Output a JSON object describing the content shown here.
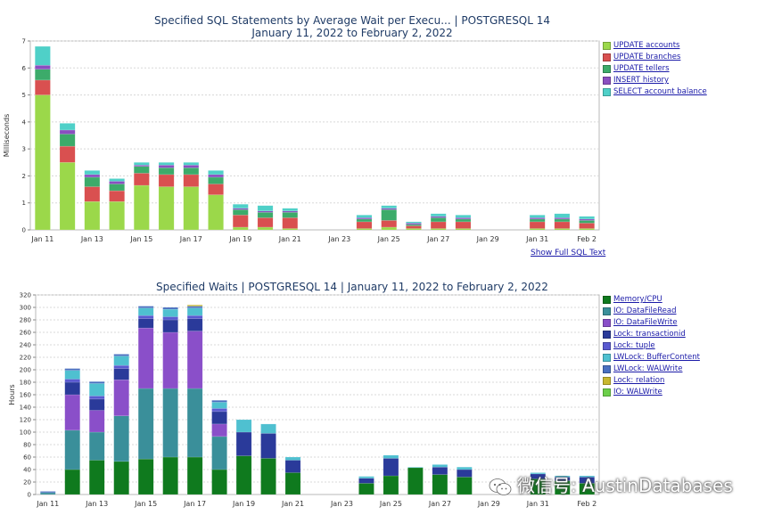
{
  "chart_data": [
    {
      "type": "bar",
      "stacked": true,
      "title": "Specified SQL Statements by Average Wait per Execu... | POSTGRESQL 14",
      "subtitle": "January 11, 2022 to February 2, 2022",
      "ylabel": "Milliseconds",
      "ylim": [
        0,
        7
      ],
      "yticks": [
        0,
        1,
        2,
        3,
        4,
        5,
        6,
        7
      ],
      "grid": true,
      "legend_position": "right",
      "x_tick_labels": [
        "Jan 11",
        "Jan 13",
        "Jan 15",
        "Jan 17",
        "Jan 19",
        "Jan 21",
        "Jan 23",
        "Jan 25",
        "Jan 27",
        "Jan 29",
        "Jan 31",
        "Feb 2"
      ],
      "categories": [
        "Jan 11",
        "Jan 12",
        "Jan 13",
        "Jan 14",
        "Jan 15",
        "Jan 16",
        "Jan 17",
        "Jan 18",
        "Jan 19",
        "Jan 20",
        "Jan 21",
        "Jan 22",
        "Jan 23",
        "Jan 24",
        "Jan 25",
        "Jan 26",
        "Jan 27",
        "Jan 28",
        "Jan 29",
        "Jan 30",
        "Jan 31",
        "Feb 1",
        "Feb 2"
      ],
      "series": [
        {
          "name": "UPDATE accounts",
          "color": "#9bd84a",
          "values": [
            5.0,
            2.5,
            1.05,
            1.05,
            1.65,
            1.6,
            1.6,
            1.3,
            0.1,
            0.1,
            0.05,
            0,
            0,
            0.05,
            0.1,
            0.05,
            0.05,
            0.05,
            0,
            0,
            0.05,
            0.05,
            0.05
          ]
        },
        {
          "name": "UPDATE branches",
          "color": "#d95050",
          "values": [
            0.55,
            0.6,
            0.55,
            0.4,
            0.45,
            0.45,
            0.45,
            0.4,
            0.45,
            0.35,
            0.4,
            0,
            0,
            0.25,
            0.25,
            0.1,
            0.25,
            0.25,
            0,
            0,
            0.25,
            0.25,
            0.2
          ]
        },
        {
          "name": "UPDATE tellers",
          "color": "#3cab6a",
          "values": [
            0.4,
            0.45,
            0.35,
            0.25,
            0.25,
            0.25,
            0.25,
            0.25,
            0.2,
            0.2,
            0.2,
            0,
            0,
            0.1,
            0.4,
            0.05,
            0.15,
            0.1,
            0,
            0,
            0.1,
            0.1,
            0.1
          ]
        },
        {
          "name": "INSERT history",
          "color": "#8a4fc0",
          "values": [
            0.15,
            0.15,
            0.1,
            0.1,
            0.05,
            0.1,
            0.1,
            0.1,
            0.05,
            0.05,
            0.05,
            0,
            0,
            0.05,
            0.05,
            0.05,
            0.05,
            0.05,
            0,
            0,
            0.05,
            0.05,
            0.05
          ]
        },
        {
          "name": "SELECT account balance",
          "color": "#4fd0c8",
          "values": [
            0.7,
            0.25,
            0.15,
            0.1,
            0.1,
            0.1,
            0.1,
            0.15,
            0.15,
            0.2,
            0.1,
            0,
            0,
            0.1,
            0.1,
            0.05,
            0.1,
            0.1,
            0,
            0,
            0.1,
            0.15,
            0.1
          ]
        }
      ],
      "link": "Show Full SQL Text"
    },
    {
      "type": "bar",
      "stacked": true,
      "title": "Specified Waits | POSTGRESQL 14 | January 11, 2022 to February 2, 2022",
      "ylabel": "Hours",
      "ylim": [
        0,
        320
      ],
      "yticks": [
        0,
        20,
        40,
        60,
        80,
        100,
        120,
        140,
        160,
        180,
        200,
        220,
        240,
        260,
        280,
        300,
        320
      ],
      "grid": true,
      "legend_position": "right",
      "x_tick_labels": [
        "Jan 11",
        "Jan 13",
        "Jan 15",
        "Jan 17",
        "Jan 19",
        "Jan 21",
        "Jan 23",
        "Jan 25",
        "Jan 27",
        "Jan 29",
        "Jan 31",
        "Feb 2"
      ],
      "categories": [
        "Jan 11",
        "Jan 12",
        "Jan 13",
        "Jan 14",
        "Jan 15",
        "Jan 16",
        "Jan 17",
        "Jan 18",
        "Jan 19",
        "Jan 20",
        "Jan 21",
        "Jan 22",
        "Jan 23",
        "Jan 24",
        "Jan 25",
        "Jan 26",
        "Jan 27",
        "Jan 28",
        "Jan 29",
        "Jan 30",
        "Jan 31",
        "Feb 1",
        "Feb 2"
      ],
      "series": [
        {
          "name": "Memory/CPU",
          "color": "#0f7a1e",
          "values": [
            0,
            40,
            55,
            53,
            57,
            60,
            60,
            40,
            62,
            58,
            35,
            0,
            0,
            18,
            30,
            43,
            32,
            28,
            0,
            0,
            25,
            22,
            18
          ]
        },
        {
          "name": "IO: DataFileRead",
          "color": "#3a8f9a",
          "values": [
            3,
            63,
            45,
            73,
            113,
            110,
            110,
            53,
            0,
            0,
            0,
            0,
            0,
            0,
            0,
            0,
            0,
            0,
            0,
            0,
            0,
            0,
            0
          ]
        },
        {
          "name": "IO: DataFileWrite",
          "color": "#8a4fc9",
          "values": [
            0,
            57,
            35,
            58,
            97,
            90,
            92,
            20,
            0,
            0,
            0,
            0,
            0,
            0,
            0,
            0,
            0,
            0,
            0,
            0,
            0,
            0,
            0
          ]
        },
        {
          "name": "Lock: transactionid",
          "color": "#2a3a9a",
          "values": [
            0,
            20,
            18,
            18,
            15,
            20,
            20,
            20,
            38,
            40,
            20,
            0,
            0,
            8,
            28,
            0,
            12,
            12,
            0,
            0,
            8,
            6,
            10
          ]
        },
        {
          "name": "Lock: tuple",
          "color": "#5a5ad0",
          "values": [
            0,
            5,
            5,
            5,
            5,
            5,
            5,
            5,
            0,
            0,
            0,
            0,
            0,
            0,
            0,
            0,
            0,
            0,
            0,
            0,
            0,
            0,
            0
          ]
        },
        {
          "name": "LWLock: BufferContent",
          "color": "#4fc0d0",
          "values": [
            0,
            14,
            20,
            15,
            12,
            12,
            12,
            10,
            20,
            15,
            5,
            0,
            0,
            3,
            5,
            1,
            4,
            4,
            0,
            0,
            2,
            2,
            2
          ]
        },
        {
          "name": "LWLock: WALWrite",
          "color": "#4a70c0",
          "values": [
            2,
            3,
            3,
            3,
            3,
            3,
            3,
            3,
            0,
            0,
            0,
            0,
            0,
            0,
            0,
            0,
            0,
            0,
            0,
            0,
            0,
            0,
            0
          ]
        },
        {
          "name": "Lock: relation",
          "color": "#c8b830",
          "values": [
            0,
            0,
            0,
            0,
            0,
            0,
            2,
            0,
            0,
            0,
            0,
            0,
            0,
            0,
            0,
            0,
            0,
            0,
            0,
            0,
            0,
            0,
            0
          ]
        },
        {
          "name": "IO: WALWrite",
          "color": "#6ccf4a",
          "values": [
            0,
            0,
            0,
            0,
            0,
            0,
            0,
            0,
            0,
            0,
            0,
            0,
            0,
            0,
            0,
            0,
            0,
            0,
            0,
            0,
            0,
            0,
            0
          ]
        }
      ]
    }
  ],
  "watermark": "微信号: AustinDatabases"
}
